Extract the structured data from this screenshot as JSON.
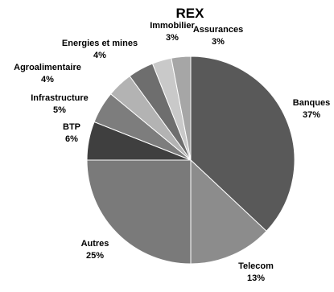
{
  "chart_data": {
    "type": "pie",
    "title": "REX",
    "slices": [
      {
        "label": "Banques",
        "percent_label": "37%",
        "value": 37,
        "color": "#595959"
      },
      {
        "label": "Telecom",
        "percent_label": "13%",
        "value": 13,
        "color": "#8c8c8c"
      },
      {
        "label": "Autres",
        "percent_label": "25%",
        "value": 25,
        "color": "#7a7a7a"
      },
      {
        "label": "BTP",
        "percent_label": "6%",
        "value": 6,
        "color": "#3f3f3f"
      },
      {
        "label": "Infrastructure",
        "percent_label": "5%",
        "value": 5,
        "color": "#7d7d7d"
      },
      {
        "label": "Agroalimentaire",
        "percent_label": "4%",
        "value": 4,
        "color": "#b3b3b3"
      },
      {
        "label": "Energies et mines",
        "percent_label": "4%",
        "value": 4,
        "color": "#6e6e6e"
      },
      {
        "label": "Immobilier",
        "percent_label": "3%",
        "value": 3,
        "color": "#c9c9c9"
      },
      {
        "label": "Assurances",
        "percent_label": "3%",
        "value": 3,
        "color": "#a6a6a6"
      }
    ]
  }
}
